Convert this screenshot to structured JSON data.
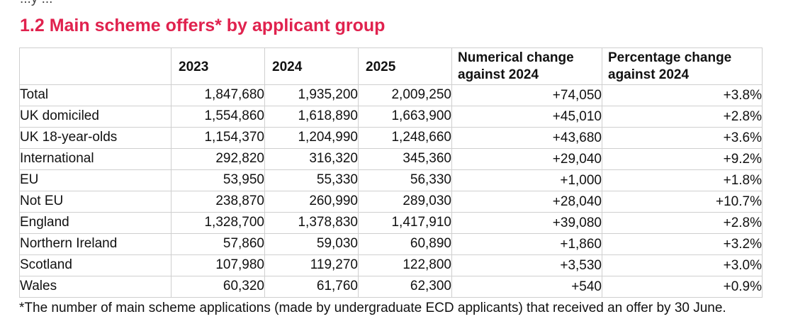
{
  "fragment_top": "...y ...",
  "section_title": "1.2 Main scheme offers* by applicant group",
  "table": {
    "headers": {
      "blank": "",
      "y2023": "2023",
      "y2024": "2024",
      "y2025": "2025",
      "num_change": "Numerical change against 2024",
      "pct_change": "Percentage change against 2024"
    },
    "rows": [
      {
        "group": "Total",
        "y2023": "1,847,680",
        "y2024": "1,935,200",
        "y2025": "2,009,250",
        "num_change": "+74,050",
        "pct_change": "+3.8%"
      },
      {
        "group": "UK domiciled",
        "y2023": "1,554,860",
        "y2024": "1,618,890",
        "y2025": "1,663,900",
        "num_change": "+45,010",
        "pct_change": "+2.8%"
      },
      {
        "group": "UK 18-year-olds",
        "y2023": "1,154,370",
        "y2024": "1,204,990",
        "y2025": "1,248,660",
        "num_change": "+43,680",
        "pct_change": "+3.6%"
      },
      {
        "group": "International",
        "y2023": "292,820",
        "y2024": "316,320",
        "y2025": "345,360",
        "num_change": "+29,040",
        "pct_change": "+9.2%"
      },
      {
        "group": "EU",
        "y2023": "53,950",
        "y2024": "55,330",
        "y2025": "56,330",
        "num_change": "+1,000",
        "pct_change": "+1.8%"
      },
      {
        "group": "Not EU",
        "y2023": "238,870",
        "y2024": "260,990",
        "y2025": "289,030",
        "num_change": "+28,040",
        "pct_change": "+10.7%"
      },
      {
        "group": "England",
        "y2023": "1,328,700",
        "y2024": "1,378,830",
        "y2025": "1,417,910",
        "num_change": "+39,080",
        "pct_change": "+2.8%"
      },
      {
        "group": "Northern Ireland",
        "y2023": "57,860",
        "y2024": "59,030",
        "y2025": "60,890",
        "num_change": "+1,860",
        "pct_change": "+3.2%"
      },
      {
        "group": "Scotland",
        "y2023": "107,980",
        "y2024": "119,270",
        "y2025": "122,800",
        "num_change": "+3,530",
        "pct_change": "+3.0%"
      },
      {
        "group": "Wales",
        "y2023": "60,320",
        "y2024": "61,760",
        "y2025": "62,300",
        "num_change": "+540",
        "pct_change": "+0.9%"
      }
    ]
  },
  "footnote": "*The number of main scheme applications (made by undergraduate ECD applicants) that received an offer by 30 June.",
  "colors": {
    "title": "#e0224e",
    "grid": "#cfcfcf",
    "text": "#111111"
  }
}
